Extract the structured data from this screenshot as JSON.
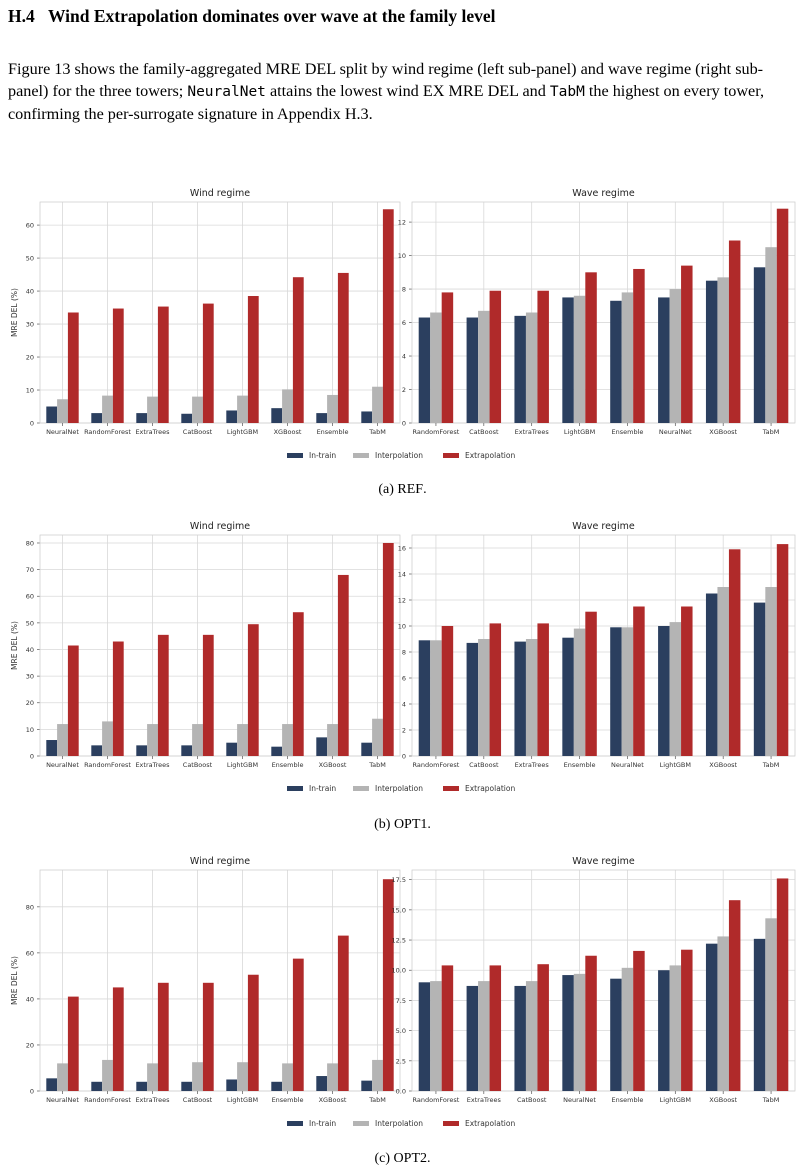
{
  "section": {
    "number": "H.4",
    "title": "Wind Extrapolation dominates over wave at the family level"
  },
  "paragraph": {
    "t1": "Figure 13 shows the family-aggregated MRE DEL split by wind regime (left sub-panel) and wave regime (right sub-panel) for the three towers; ",
    "code1": "NeuralNet",
    "t2": " attains the lowest wind EX MRE DEL and ",
    "code2": "TabM",
    "t3": " the highest on every tower, confirming the per-surrogate signature in Appendix H.3."
  },
  "colors": {
    "in_train": "#2b3f5f",
    "interpolation": "#b4b4b4",
    "extrapolation": "#b02a2a"
  },
  "legend": [
    "In-train",
    "Interpolation",
    "Extrapolation"
  ],
  "figures": [
    {
      "caption_prefix": "(a) ",
      "caption_name": "REF",
      "caption_suffix": ".",
      "chart_data": [
        {
          "type": "bar",
          "title": "Wind regime",
          "ylabel": "MRE DEL (%)",
          "xlabel": "",
          "ylim": [
            0,
            67
          ],
          "yticks": [
            0,
            10,
            20,
            30,
            40,
            50,
            60
          ],
          "ytick_labels": [
            "0",
            "10",
            "20",
            "30",
            "40",
            "50",
            "60"
          ],
          "categories": [
            "NeuralNet",
            "RandomForest",
            "ExtraTrees",
            "CatBoost",
            "LightGBM",
            "XGBoost",
            "Ensemble",
            "TabM"
          ],
          "series": [
            {
              "name": "In-train",
              "values": [
                5.0,
                3.0,
                3.0,
                2.8,
                3.8,
                4.5,
                3.0,
                3.5
              ]
            },
            {
              "name": "Interpolation",
              "values": [
                7.2,
                8.3,
                8.0,
                8.0,
                8.3,
                10.2,
                8.5,
                11.0
              ]
            },
            {
              "name": "Extrapolation",
              "values": [
                33.5,
                34.7,
                35.3,
                36.2,
                38.5,
                44.2,
                45.5,
                64.8
              ]
            }
          ]
        },
        {
          "type": "bar",
          "title": "Wave regime",
          "ylabel": "",
          "xlabel": "",
          "ylim": [
            0,
            13.2
          ],
          "yticks": [
            0,
            2,
            4,
            6,
            8,
            10,
            12
          ],
          "ytick_labels": [
            "0",
            "2",
            "4",
            "6",
            "8",
            "10",
            "12"
          ],
          "categories": [
            "RandomForest",
            "CatBoost",
            "ExtraTrees",
            "LightGBM",
            "Ensemble",
            "NeuralNet",
            "XGBoost",
            "TabM"
          ],
          "series": [
            {
              "name": "In-train",
              "values": [
                6.3,
                6.3,
                6.4,
                7.5,
                7.3,
                7.5,
                8.5,
                9.3
              ]
            },
            {
              "name": "Interpolation",
              "values": [
                6.6,
                6.7,
                6.6,
                7.6,
                7.8,
                8.0,
                8.7,
                10.5
              ]
            },
            {
              "name": "Extrapolation",
              "values": [
                7.8,
                7.9,
                7.9,
                9.0,
                9.2,
                9.4,
                10.9,
                12.8
              ]
            }
          ]
        }
      ]
    },
    {
      "caption_prefix": "(b) ",
      "caption_name": "OPT1",
      "caption_suffix": ".",
      "chart_data": [
        {
          "type": "bar",
          "title": "Wind regime",
          "ylabel": "MRE DEL (%)",
          "xlabel": "",
          "ylim": [
            0,
            83
          ],
          "yticks": [
            0,
            10,
            20,
            30,
            40,
            50,
            60,
            70,
            80
          ],
          "ytick_labels": [
            "0",
            "10",
            "20",
            "30",
            "40",
            "50",
            "60",
            "70",
            "80"
          ],
          "categories": [
            "NeuralNet",
            "RandomForest",
            "ExtraTrees",
            "CatBoost",
            "LightGBM",
            "Ensemble",
            "XGBoost",
            "TabM"
          ],
          "series": [
            {
              "name": "In-train",
              "values": [
                6.0,
                4.0,
                4.0,
                4.0,
                5.0,
                3.5,
                7.0,
                5.0
              ]
            },
            {
              "name": "Interpolation",
              "values": [
                12.0,
                13.0,
                12.0,
                12.0,
                12.0,
                12.0,
                12.0,
                14.0
              ]
            },
            {
              "name": "Extrapolation",
              "values": [
                41.5,
                43.0,
                45.5,
                45.5,
                49.5,
                54.0,
                68.0,
                80.0
              ]
            }
          ]
        },
        {
          "type": "bar",
          "title": "Wave regime",
          "ylabel": "",
          "xlabel": "",
          "ylim": [
            0,
            17
          ],
          "yticks": [
            0,
            2,
            4,
            6,
            8,
            10,
            12,
            14,
            16
          ],
          "ytick_labels": [
            "0",
            "2",
            "4",
            "6",
            "8",
            "10",
            "12",
            "14",
            "16"
          ],
          "categories": [
            "RandomForest",
            "CatBoost",
            "ExtraTrees",
            "Ensemble",
            "NeuralNet",
            "LightGBM",
            "XGBoost",
            "TabM"
          ],
          "series": [
            {
              "name": "In-train",
              "values": [
                8.9,
                8.7,
                8.8,
                9.1,
                9.9,
                10.0,
                12.5,
                11.8
              ]
            },
            {
              "name": "Interpolation",
              "values": [
                8.9,
                9.0,
                9.0,
                9.8,
                9.9,
                10.3,
                13.0,
                13.0
              ]
            },
            {
              "name": "Extrapolation",
              "values": [
                10.0,
                10.2,
                10.2,
                11.1,
                11.5,
                11.5,
                15.9,
                16.3
              ]
            }
          ]
        }
      ]
    },
    {
      "caption_prefix": "(c) ",
      "caption_name": "OPT2",
      "caption_suffix": ".",
      "chart_data": [
        {
          "type": "bar",
          "title": "Wind regime",
          "ylabel": "MRE DEL (%)",
          "xlabel": "",
          "ylim": [
            0,
            96
          ],
          "yticks": [
            0,
            20,
            40,
            60,
            80
          ],
          "ytick_labels": [
            "0",
            "20",
            "40",
            "60",
            "80"
          ],
          "categories": [
            "NeuralNet",
            "RandomForest",
            "ExtraTrees",
            "CatBoost",
            "LightGBM",
            "Ensemble",
            "XGBoost",
            "TabM"
          ],
          "series": [
            {
              "name": "In-train",
              "values": [
                5.5,
                4.0,
                4.0,
                4.0,
                5.0,
                4.0,
                6.5,
                4.5
              ]
            },
            {
              "name": "Interpolation",
              "values": [
                12.0,
                13.5,
                12.0,
                12.5,
                12.5,
                12.0,
                12.0,
                13.5
              ]
            },
            {
              "name": "Extrapolation",
              "values": [
                41.0,
                45.0,
                47.0,
                47.0,
                50.5,
                57.5,
                67.5,
                92.0
              ]
            }
          ]
        },
        {
          "type": "bar",
          "title": "Wave regime",
          "ylabel": "",
          "xlabel": "",
          "ylim": [
            0,
            18.3
          ],
          "yticks": [
            0,
            2.5,
            5,
            7.5,
            10,
            12.5,
            15,
            17.5
          ],
          "ytick_labels": [
            "0.0",
            "2.5",
            "5.0",
            "7.5",
            "10.0",
            "12.5",
            "15.0",
            "17.5"
          ],
          "categories": [
            "RandomForest",
            "ExtraTrees",
            "CatBoost",
            "NeuralNet",
            "Ensemble",
            "LightGBM",
            "XGBoost",
            "TabM"
          ],
          "series": [
            {
              "name": "In-train",
              "values": [
                9.0,
                8.7,
                8.7,
                9.6,
                9.3,
                10.0,
                12.2,
                12.6
              ]
            },
            {
              "name": "Interpolation",
              "values": [
                9.1,
                9.1,
                9.1,
                9.7,
                10.2,
                10.4,
                12.8,
                14.3
              ]
            },
            {
              "name": "Extrapolation",
              "values": [
                10.4,
                10.4,
                10.5,
                11.2,
                11.6,
                11.7,
                15.8,
                17.6
              ]
            }
          ]
        }
      ]
    }
  ]
}
